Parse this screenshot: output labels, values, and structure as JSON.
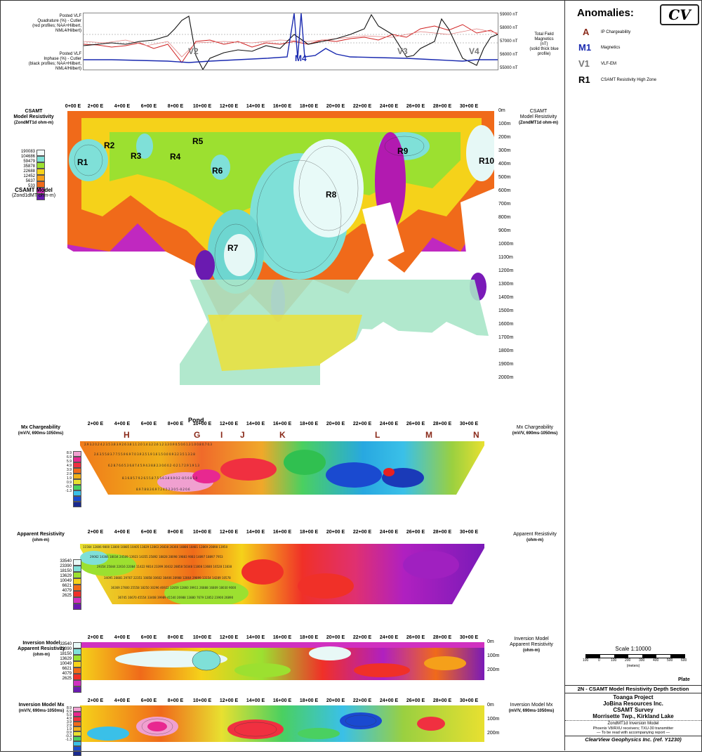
{
  "anomalies_legend": {
    "title": "Anomalies:",
    "logo": "CV",
    "items": [
      {
        "symbol": "A",
        "label": "IP Chargeability",
        "color": "#8a2a1a"
      },
      {
        "symbol": "M1",
        "label": "Magnetics",
        "color": "#1a2ab0"
      },
      {
        "symbol": "V1",
        "label": "VLF-EM",
        "color": "#777777"
      },
      {
        "symbol": "R1",
        "label": "CSAMT Resistivity High Zone",
        "color": "#000000"
      }
    ]
  },
  "profile_panel": {
    "left_labels": [
      "Posted VLF",
      "Quadrature (%) - Cutler",
      "(red profiles; NAA+Hilbert, NML4/Hilbert)",
      "Posted VLF",
      "Inphase (%) - Cutler",
      "(black profiles; NAA+Hilbert, NML4/Hilbert)"
    ],
    "right_axis": [
      "59000 nT",
      "58000 nT",
      "57000 nT",
      "56000 nT",
      "55000 nT"
    ],
    "right_labels": [
      "Total Field",
      "Magnetics",
      "(nT)",
      "(solid thick blue profile)"
    ],
    "anomaly_marks": [
      "V2",
      "M4",
      "V3",
      "V4"
    ]
  },
  "stations": [
    "0+00 E",
    "2+00 E",
    "4+00 E",
    "6+00 E",
    "8+00 E",
    "10+00 E",
    "12+00 E",
    "14+00 E",
    "16+00 E",
    "18+00 E",
    "20+00 E",
    "22+00 E",
    "24+00 E",
    "26+00 E",
    "28+00 E",
    "30+00 E"
  ],
  "csamt": {
    "title_left": "CSAMT",
    "title_left2": "Model Resistivity",
    "title_left3": "(ZondMT1d ohm-m)",
    "model_title": "CSAMT Model",
    "model_sub": "(Zond1dMT ohm-m)",
    "title_right": "CSAMT",
    "title_right2": "Model Resistivity",
    "title_right3": "(ZondMT1d ohm-m)",
    "legend_values": [
      "190083",
      "104686",
      "59479",
      "35878",
      "22688",
      "12452",
      "5637",
      "533"
    ],
    "depths": [
      "0m",
      "100m",
      "200m",
      "300m",
      "400m",
      "500m",
      "600m",
      "700m",
      "800m",
      "900m",
      "1000m",
      "1100m",
      "1200m",
      "1300m",
      "1400m",
      "1500m",
      "1600m",
      "1700m",
      "1800m",
      "1900m",
      "2000m"
    ],
    "zones": [
      "R1",
      "R2",
      "R3",
      "R4",
      "R5",
      "R6",
      "R7",
      "R8",
      "R9",
      "R10"
    ]
  },
  "chargeability": {
    "title": "Mx Chargeability",
    "units": "(mV/V, 690ms-1050ms)",
    "right_title": "Mx Chargeability",
    "right_units": "(mV/V, 690ms-1050ms)",
    "pond": "Pond",
    "anomalies": [
      "H",
      "G",
      "I",
      "J",
      "K",
      "L",
      "M",
      "N"
    ],
    "legend_values": [
      "8.9",
      "6.9",
      "5.9",
      "4.9",
      "3.9",
      "2.9",
      "1.9",
      "0.9",
      "-0.3",
      "-1.3"
    ]
  },
  "apparent_res": {
    "title": "Apparent Resistivity",
    "units": "(ohm-m)",
    "right_title": "Apparent Resistivity",
    "right_units": "(ohm-m)",
    "legend_values": [
      "33540",
      "23390",
      "18150",
      "13629",
      "10049",
      "6621",
      "4079",
      "2625"
    ]
  },
  "inv_res": {
    "title": "Inversion Model",
    "title2": "Apparent Resistivity",
    "units": "(ohm-m)",
    "right_title": "Inversion Model",
    "right_title2": "Apparent Resistivity",
    "right_units": "(ohm-m)",
    "depths": [
      "0m",
      "100m",
      "200m"
    ],
    "legend_values": [
      "33540",
      "23390",
      "18150",
      "13629",
      "10049",
      "6621",
      "4079",
      "2625"
    ]
  },
  "inv_mx": {
    "title": "Inversion Model Mx",
    "units": "(mV/V, 690ms-1050ms)",
    "right_title": "Inversion Model Mx",
    "right_units": "(mV/V, 690ms-1050ms)",
    "depths": [
      "0m",
      "100m",
      "200m"
    ],
    "legend_values": [
      "8.9",
      "6.9",
      "5.9",
      "4.9",
      "3.9",
      "2.9",
      "1.9",
      "0.9",
      "-0.3",
      "-1.3"
    ]
  },
  "scale": {
    "label": "Scale 1:10000",
    "ticks": [
      "100",
      "0",
      "100",
      "200",
      "300",
      "400",
      "500",
      "600"
    ],
    "units": "(meters)"
  },
  "title_block": {
    "plate": "Plate",
    "line": "2N - CSAMT Model Resistivity Depth Section",
    "project": "Toanga Project",
    "company": "JoBina Resources Inc.",
    "survey": "CSAMT Survey",
    "location": "Morrisette Twp., Kirkland Lake",
    "model": "ZondMT1d Inversion Model",
    "equipment": "Phoenix V8/RXU receivers; TXU-30 transmitter",
    "note": "— To be read with accompanying report —",
    "firm": "ClearView Geophysics Inc. (ref. Y1230)"
  }
}
